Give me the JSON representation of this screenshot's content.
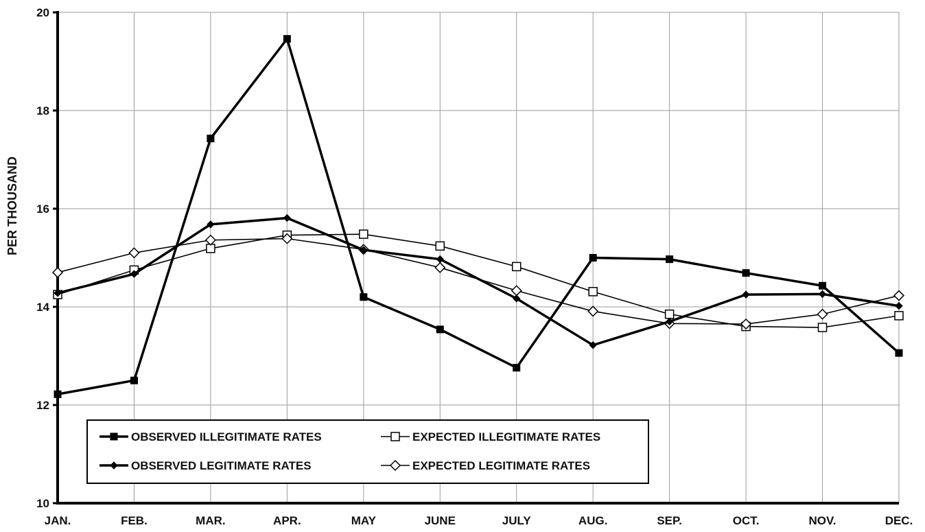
{
  "chart_data": {
    "type": "line",
    "title": "",
    "xlabel": "",
    "ylabel": "PER THOUSAND",
    "ylim": [
      10,
      20
    ],
    "yticks": [
      10,
      12,
      14,
      16,
      18,
      20
    ],
    "grid": true,
    "legend_position": "bottom-left",
    "categories": [
      "JAN.",
      "FEB.",
      "MAR.",
      "APR.",
      "MAY",
      "JUNE",
      "JULY",
      "AUG.",
      "SEP.",
      "OCT.",
      "NOV.",
      "DEC."
    ],
    "series": [
      {
        "name": "OBSERVED ILLEGITIMATE RATES",
        "marker": "filled-square",
        "line": "thick",
        "values": [
          12.22,
          12.5,
          17.43,
          19.46,
          14.2,
          13.54,
          12.76,
          15.0,
          14.97,
          14.69,
          14.43,
          13.06
        ]
      },
      {
        "name": "EXPECTED ILLEGITIMATE RATES",
        "marker": "open-square",
        "line": "thin",
        "values": [
          14.25,
          14.75,
          15.19,
          15.46,
          15.48,
          15.24,
          14.82,
          14.31,
          13.85,
          13.6,
          13.58,
          13.82
        ]
      },
      {
        "name": "OBSERVED LEGITIMATE RATES",
        "marker": "filled-diamond",
        "line": "thick",
        "values": [
          14.28,
          14.67,
          15.68,
          15.81,
          15.16,
          14.97,
          14.17,
          13.22,
          13.7,
          14.25,
          14.26,
          14.02
        ]
      },
      {
        "name": "EXPECTED LEGITIMATE RATES",
        "marker": "open-diamond",
        "line": "thin",
        "values": [
          14.7,
          15.1,
          15.36,
          15.39,
          15.17,
          14.8,
          14.33,
          13.91,
          13.66,
          13.65,
          13.85,
          14.23
        ]
      }
    ]
  }
}
